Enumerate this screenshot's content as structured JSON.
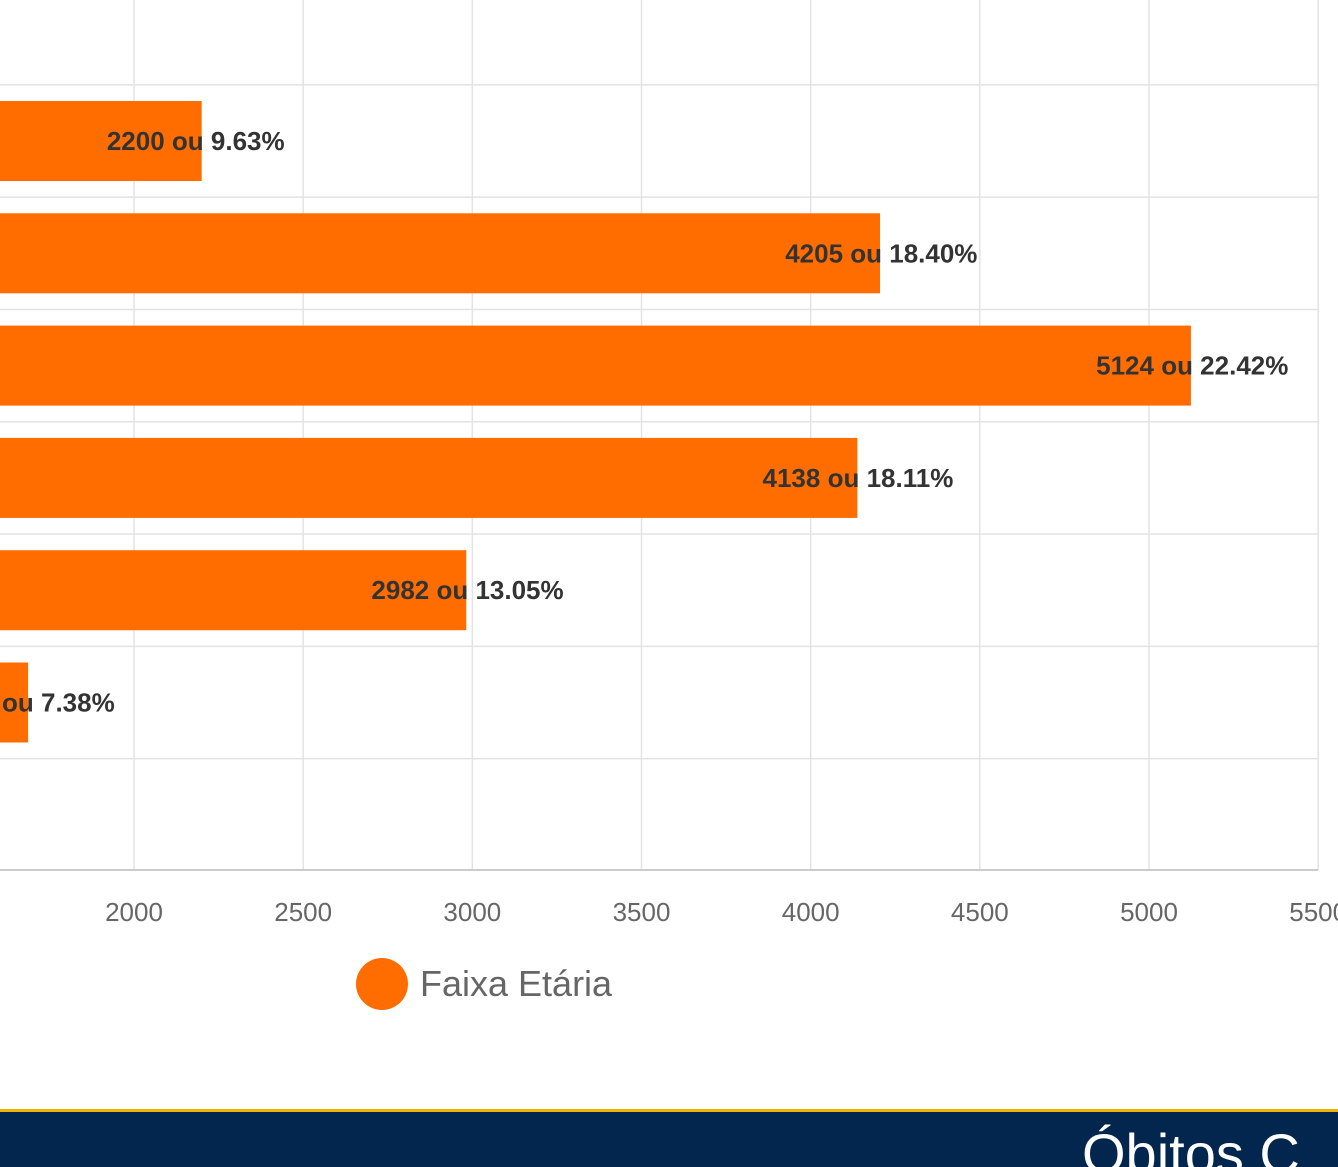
{
  "chart_data": {
    "type": "bar",
    "orientation": "horizontal",
    "series": [
      {
        "name": "Faixa Etária",
        "values": [
          2200,
          4205,
          5124,
          4138,
          2982,
          1687
        ],
        "percents": [
          "9.63%",
          "18.40%",
          "22.42%",
          "18.11%",
          "13.05%",
          "7.38%"
        ]
      }
    ],
    "data_labels": [
      "2200 ou 9.63%",
      "4205 ou 18.40%",
      "5124 ou 22.42%",
      "4138 ou 18.11%",
      "2982 ou 13.05%",
      "ou 7.38%"
    ],
    "x_ticks": [
      "2000",
      "2500",
      "3000",
      "3500",
      "4000",
      "4500",
      "5000",
      "5500"
    ],
    "x_tick_values": [
      2000,
      2500,
      3000,
      3500,
      4000,
      4500,
      5000,
      5500
    ],
    "xlim": [
      1605,
      5500
    ],
    "grid": true,
    "legend": {
      "position": "bottom",
      "label": "Faixa Etária"
    },
    "color": "#ff6d00"
  },
  "footer": {
    "title": "Óbitos C"
  },
  "colors": {
    "bar": "#ff6d00",
    "grid": "#e3e3e3",
    "footer_bg": "#03264f",
    "footer_accent": "#f0b400"
  }
}
